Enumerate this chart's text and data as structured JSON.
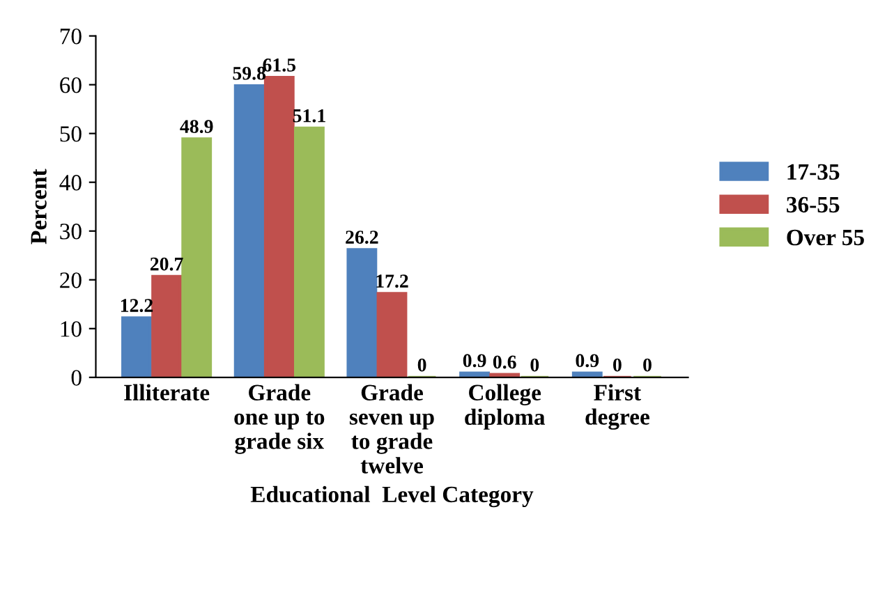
{
  "chart_data": {
    "type": "bar",
    "xlabel": "Educational  Level Category",
    "ylabel": "Percent",
    "categories": [
      "Illiterate",
      "Grade\none up to\ngrade six",
      "Grade\nseven up\nto grade\ntwelve",
      "College\ndiploma",
      "First\ndegree"
    ],
    "series": [
      {
        "name": "17-35",
        "color": "#4f81bd",
        "values": [
          12.2,
          59.8,
          26.2,
          0.9,
          0.9
        ]
      },
      {
        "name": "36-55",
        "color": "#c0504d",
        "values": [
          20.7,
          61.5,
          17.2,
          0.6,
          0
        ]
      },
      {
        "name": "Over 55",
        "color": "#9bbb59",
        "values": [
          48.9,
          51.1,
          0,
          0,
          0
        ]
      }
    ],
    "ylim": [
      0,
      70
    ],
    "yticks": [
      0,
      10,
      20,
      30,
      40,
      50,
      60,
      70
    ],
    "data_labels": true,
    "legend": "right",
    "grid": false
  }
}
